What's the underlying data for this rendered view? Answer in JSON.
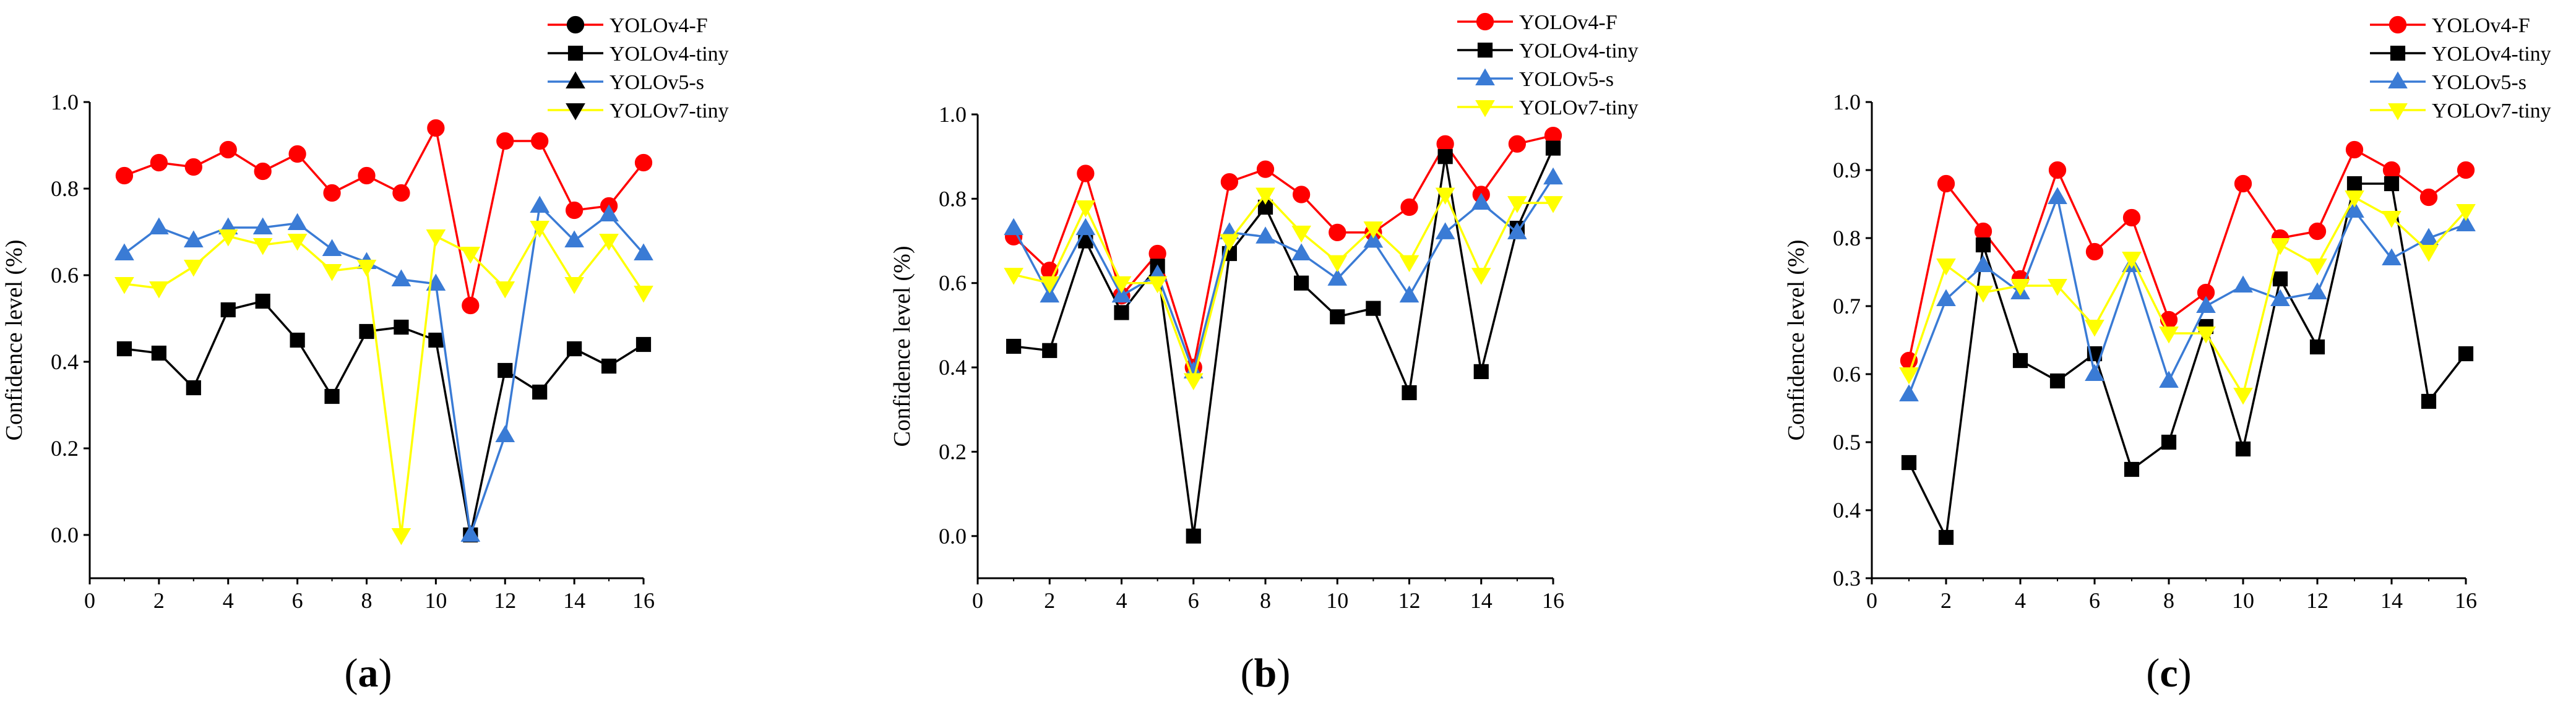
{
  "chart_data": [
    {
      "type": "line",
      "panel_label": "(a)",
      "panel_letter": "a",
      "xlabel": "",
      "ylabel": "Confidence level (%)",
      "xlim": [
        0,
        16
      ],
      "ylim": [
        -0.1,
        1.0
      ],
      "xticks": [
        0,
        2,
        4,
        6,
        8,
        10,
        12,
        14,
        16
      ],
      "yticks": [
        0.0,
        0.2,
        0.4,
        0.6,
        0.8,
        1.0
      ],
      "ytick_labels": [
        "0.0",
        "0.2",
        "0.4",
        "0.6",
        "0.8",
        "1.0"
      ],
      "legend_position": "top-right",
      "legend_marker_color": "#000000",
      "x": [
        1,
        2,
        3,
        4,
        5,
        6,
        7,
        8,
        9,
        10,
        11,
        12,
        13,
        14,
        15,
        16
      ],
      "series": [
        {
          "name": "YOLOv4-F",
          "color": "#ff0000",
          "marker": "circle",
          "values": [
            0.83,
            0.86,
            0.85,
            0.89,
            0.84,
            0.88,
            0.79,
            0.83,
            0.79,
            0.94,
            0.53,
            0.91,
            0.91,
            0.75,
            0.76,
            0.86
          ]
        },
        {
          "name": "YOLOv4-tiny",
          "color": "#000000",
          "marker": "square",
          "values": [
            0.43,
            0.42,
            0.34,
            0.52,
            0.54,
            0.45,
            0.32,
            0.47,
            0.48,
            0.45,
            0.0,
            0.38,
            0.33,
            0.43,
            0.39,
            0.44
          ]
        },
        {
          "name": "YOLOv5-s",
          "color": "#3a7bd5",
          "marker": "triangle-up",
          "values": [
            0.65,
            0.71,
            0.68,
            0.71,
            0.71,
            0.72,
            0.66,
            0.63,
            0.59,
            0.58,
            0.0,
            0.23,
            0.76,
            0.68,
            0.74,
            0.65
          ]
        },
        {
          "name": "YOLOv7-tiny",
          "color": "#ffff00",
          "marker": "triangle-down",
          "values": [
            0.58,
            0.57,
            0.62,
            0.69,
            0.67,
            0.68,
            0.61,
            0.62,
            0.0,
            0.69,
            0.65,
            0.57,
            0.71,
            0.58,
            0.68,
            0.56
          ]
        }
      ]
    },
    {
      "type": "line",
      "panel_label": "(b)",
      "panel_letter": "b",
      "xlabel": "",
      "ylabel": "Confidence level (%)",
      "xlim": [
        0,
        16
      ],
      "ylim": [
        -0.1,
        1.0
      ],
      "xticks": [
        0,
        2,
        4,
        6,
        8,
        10,
        12,
        14,
        16
      ],
      "yticks": [
        0.0,
        0.2,
        0.4,
        0.6,
        0.8,
        1.0
      ],
      "ytick_labels": [
        "0.0",
        "0.2",
        "0.4",
        "0.6",
        "0.8",
        "1.0"
      ],
      "legend_position": "top-right",
      "legend_marker_color": "series",
      "x": [
        1,
        2,
        3,
        4,
        5,
        6,
        7,
        8,
        9,
        10,
        11,
        12,
        13,
        14,
        15,
        16
      ],
      "series": [
        {
          "name": "YOLOv4-F",
          "color": "#ff0000",
          "marker": "circle",
          "values": [
            0.71,
            0.63,
            0.86,
            0.57,
            0.67,
            0.4,
            0.84,
            0.87,
            0.81,
            0.72,
            0.72,
            0.78,
            0.93,
            0.81,
            0.93,
            0.95
          ]
        },
        {
          "name": "YOLOv4-tiny",
          "color": "#000000",
          "marker": "square",
          "values": [
            0.45,
            0.44,
            0.7,
            0.53,
            0.64,
            0.0,
            0.67,
            0.78,
            0.6,
            0.52,
            0.54,
            0.34,
            0.9,
            0.39,
            0.73,
            0.92
          ]
        },
        {
          "name": "YOLOv5-s",
          "color": "#3a7bd5",
          "marker": "triangle-up",
          "values": [
            0.73,
            0.57,
            0.73,
            0.57,
            0.62,
            0.39,
            0.72,
            0.71,
            0.67,
            0.61,
            0.7,
            0.57,
            0.72,
            0.79,
            0.72,
            0.85
          ]
        },
        {
          "name": "YOLOv7-tiny",
          "color": "#ffff00",
          "marker": "triangle-down",
          "values": [
            0.62,
            0.6,
            0.78,
            0.6,
            0.6,
            0.37,
            0.7,
            0.81,
            0.72,
            0.65,
            0.73,
            0.65,
            0.81,
            0.62,
            0.79,
            0.79
          ]
        }
      ]
    },
    {
      "type": "line",
      "panel_label": "(c)",
      "panel_letter": "c",
      "xlabel": "",
      "ylabel": "Confidence level (%)",
      "xlim": [
        0,
        16
      ],
      "ylim": [
        0.3,
        1.0
      ],
      "xticks": [
        0,
        2,
        4,
        6,
        8,
        10,
        12,
        14,
        16
      ],
      "yticks": [
        0.3,
        0.4,
        0.5,
        0.6,
        0.7,
        0.8,
        0.9,
        1.0
      ],
      "ytick_labels": [
        "0.3",
        "0.4",
        "0.5",
        "0.6",
        "0.7",
        "0.8",
        "0.9",
        "1.0"
      ],
      "legend_position": "top-right",
      "legend_marker_color": "series",
      "x": [
        1,
        2,
        3,
        4,
        5,
        6,
        7,
        8,
        9,
        10,
        11,
        12,
        13,
        14,
        15,
        16
      ],
      "series": [
        {
          "name": "YOLOv4-F",
          "color": "#ff0000",
          "marker": "circle",
          "values": [
            0.62,
            0.88,
            0.81,
            0.74,
            0.9,
            0.78,
            0.83,
            0.68,
            0.72,
            0.88,
            0.8,
            0.81,
            0.93,
            0.9,
            0.86,
            0.9
          ]
        },
        {
          "name": "YOLOv4-tiny",
          "color": "#000000",
          "marker": "square",
          "values": [
            0.47,
            0.36,
            0.79,
            0.62,
            0.59,
            0.63,
            0.46,
            0.5,
            0.67,
            0.49,
            0.74,
            0.64,
            0.88,
            0.88,
            0.56,
            0.63
          ]
        },
        {
          "name": "YOLOv5-s",
          "color": "#3a7bd5",
          "marker": "triangle-up",
          "values": [
            0.57,
            0.71,
            0.76,
            0.72,
            0.86,
            0.6,
            0.76,
            0.59,
            0.7,
            0.73,
            0.71,
            0.72,
            0.84,
            0.77,
            0.8,
            0.82
          ]
        },
        {
          "name": "YOLOv7-tiny",
          "color": "#ffff00",
          "marker": "triangle-down",
          "values": [
            0.6,
            0.76,
            0.72,
            0.73,
            0.73,
            0.67,
            0.77,
            0.66,
            0.66,
            0.57,
            0.79,
            0.76,
            0.86,
            0.83,
            0.78,
            0.84
          ]
        }
      ]
    }
  ]
}
